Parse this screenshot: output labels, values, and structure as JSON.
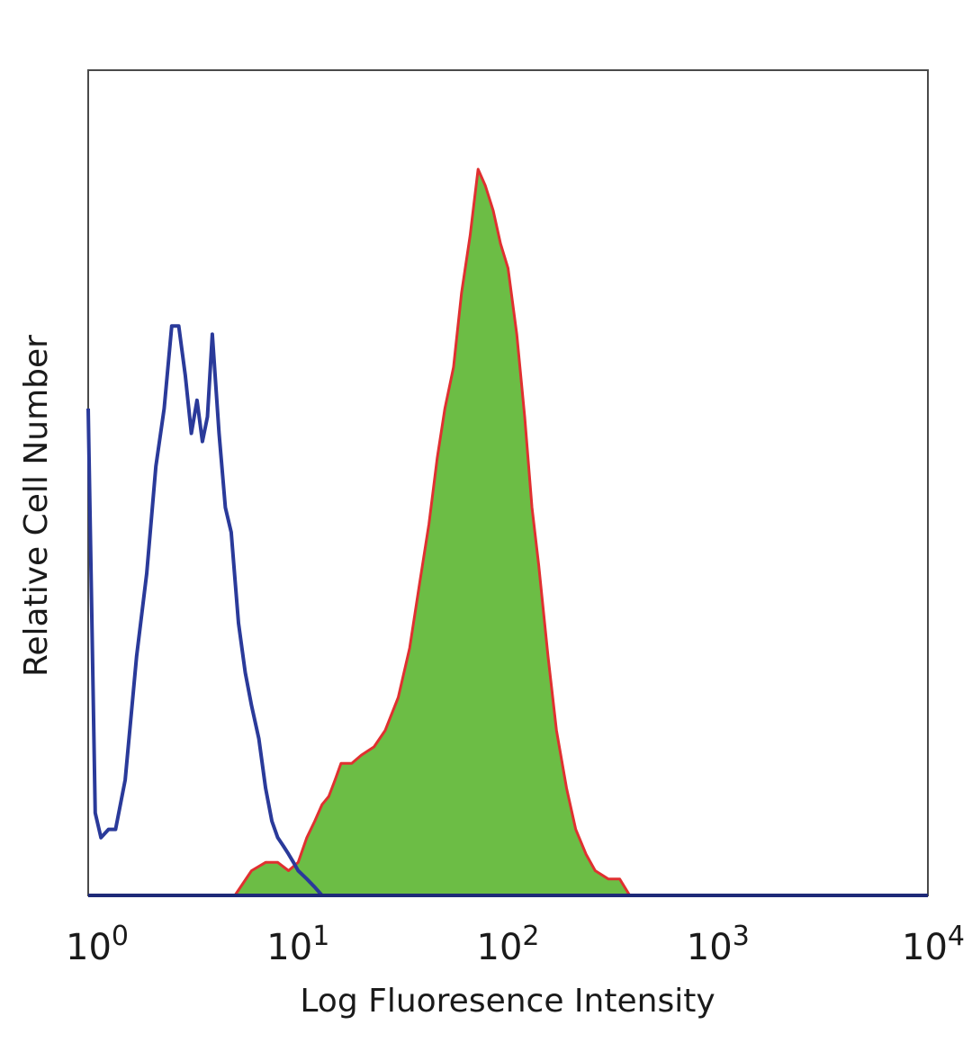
{
  "chart_data": {
    "type": "area",
    "title": "",
    "xlabel": "Log Fluoresence Intensity",
    "ylabel": "Relative Cell Number",
    "x_scale": "log",
    "xlim": [
      1,
      10000
    ],
    "ylim": [
      0,
      1
    ],
    "x_ticks": [
      {
        "value": 1,
        "base": "10",
        "exp": "0"
      },
      {
        "value": 10,
        "base": "10",
        "exp": "1"
      },
      {
        "value": 100,
        "base": "10",
        "exp": "2"
      },
      {
        "value": 1000,
        "base": "10",
        "exp": "3"
      },
      {
        "value": 10000,
        "base": "10",
        "exp": "4"
      }
    ],
    "grid": false,
    "legend": "none",
    "series": [
      {
        "style": "outline",
        "color": "#2a3a9a",
        "x": [
          1.0,
          1.08,
          1.15,
          1.25,
          1.35,
          1.5,
          1.7,
          1.9,
          2.1,
          2.3,
          2.5,
          2.7,
          2.9,
          3.1,
          3.3,
          3.5,
          3.7,
          3.9,
          4.2,
          4.5,
          4.8,
          5.2,
          5.6,
          6.0,
          6.5,
          7.0,
          7.5,
          8.0,
          8.5,
          9.0,
          9.5,
          10.0,
          11.0,
          12.0,
          13.0,
          14.0
        ],
        "y": [
          0.59,
          0.1,
          0.07,
          0.08,
          0.08,
          0.14,
          0.29,
          0.39,
          0.52,
          0.59,
          0.69,
          0.69,
          0.63,
          0.56,
          0.6,
          0.55,
          0.58,
          0.68,
          0.56,
          0.47,
          0.44,
          0.33,
          0.27,
          0.23,
          0.19,
          0.13,
          0.09,
          0.07,
          0.06,
          0.05,
          0.04,
          0.03,
          0.02,
          0.01,
          0.0,
          0.0
        ]
      },
      {
        "style": "filled",
        "color": "#6cbd45",
        "edge_color": "#e03030",
        "x": [
          5.0,
          6.0,
          7.0,
          8.0,
          9.0,
          10.0,
          11.0,
          12.0,
          13.0,
          14.0,
          15.0,
          16.0,
          18.0,
          20.0,
          23.0,
          26.0,
          30.0,
          34.0,
          38.0,
          42.0,
          46.0,
          50.0,
          55.0,
          60.0,
          66.0,
          72.0,
          78.0,
          85.0,
          92.0,
          100.0,
          110.0,
          120.0,
          130.0,
          140.0,
          155.0,
          170.0,
          190.0,
          210.0,
          235.0,
          260.0,
          300.0,
          340.0,
          380.0
        ],
        "y": [
          0.0,
          0.03,
          0.04,
          0.04,
          0.03,
          0.04,
          0.07,
          0.09,
          0.11,
          0.12,
          0.14,
          0.16,
          0.16,
          0.17,
          0.18,
          0.2,
          0.24,
          0.3,
          0.38,
          0.45,
          0.53,
          0.59,
          0.64,
          0.73,
          0.8,
          0.88,
          0.86,
          0.83,
          0.79,
          0.76,
          0.68,
          0.58,
          0.47,
          0.4,
          0.29,
          0.2,
          0.13,
          0.08,
          0.05,
          0.03,
          0.02,
          0.02,
          0.0
        ]
      }
    ]
  }
}
